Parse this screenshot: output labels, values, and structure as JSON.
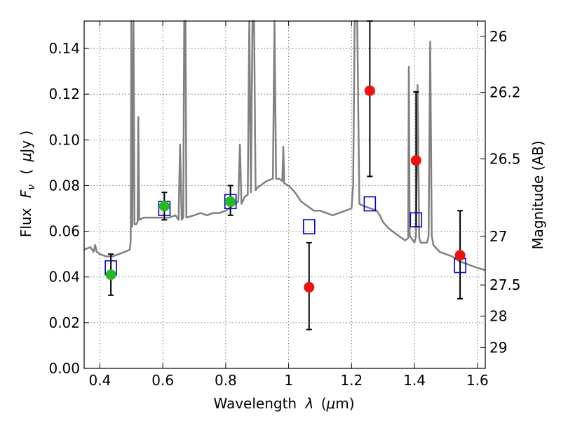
{
  "chart_data": {
    "type": "scatter",
    "xlabel_parts": [
      "Wavelength",
      "λ",
      "(",
      "μ",
      "m)"
    ],
    "ylabel_parts": [
      "Flux",
      "F",
      "ν",
      "(",
      "μ",
      "Jy )"
    ],
    "y2label": "Magnitude (AB)",
    "xlim": [
      0.35,
      1.625
    ],
    "ylim": [
      0.0,
      0.152
    ],
    "grid": true,
    "xticks": [
      {
        "value": 0.4,
        "label": "0.4"
      },
      {
        "value": 0.6,
        "label": "0.6"
      },
      {
        "value": 0.8,
        "label": "0.8"
      },
      {
        "value": 1.0,
        "label": "1"
      },
      {
        "value": 1.2,
        "label": "1.2"
      },
      {
        "value": 1.4,
        "label": "1.4"
      },
      {
        "value": 1.6,
        "label": "1.6"
      }
    ],
    "yticks": [
      {
        "value": 0.0,
        "label": "0.00"
      },
      {
        "value": 0.02,
        "label": "0.02"
      },
      {
        "value": 0.04,
        "label": "0.04"
      },
      {
        "value": 0.06,
        "label": "0.06"
      },
      {
        "value": 0.08,
        "label": "0.08"
      },
      {
        "value": 0.1,
        "label": "0.10"
      },
      {
        "value": 0.12,
        "label": "0.12"
      },
      {
        "value": 0.14,
        "label": "0.14"
      }
    ],
    "y2ticks": [
      {
        "flux": 0.1453,
        "label": "26"
      },
      {
        "flux": 0.1208,
        "label": "26.2"
      },
      {
        "flux": 0.0917,
        "label": "26.5"
      },
      {
        "flux": 0.0578,
        "label": "27"
      },
      {
        "flux": 0.0365,
        "label": "27.5"
      },
      {
        "flux": 0.0229,
        "label": "28"
      },
      {
        "flux": 0.0091,
        "label": "29"
      }
    ],
    "colors": {
      "sed": "#808080",
      "model": "#0000cc",
      "green": "#22bb22",
      "red": "#ee1111",
      "errorbar": "#000000",
      "grid": "#555555"
    },
    "sed_line": [
      [
        0.35,
        0.052
      ],
      [
        0.37,
        0.053
      ],
      [
        0.38,
        0.051
      ],
      [
        0.385,
        0.054
      ],
      [
        0.39,
        0.051
      ],
      [
        0.4,
        0.05
      ],
      [
        0.42,
        0.049
      ],
      [
        0.44,
        0.049
      ],
      [
        0.46,
        0.05
      ],
      [
        0.48,
        0.051
      ],
      [
        0.495,
        0.052
      ],
      [
        0.498,
        0.056
      ],
      [
        0.5,
        0.152
      ],
      [
        0.503,
        0.062
      ],
      [
        0.507,
        0.152
      ],
      [
        0.51,
        0.063
      ],
      [
        0.515,
        0.063
      ],
      [
        0.52,
        0.064
      ],
      [
        0.522,
        0.11
      ],
      [
        0.525,
        0.065
      ],
      [
        0.54,
        0.066
      ],
      [
        0.56,
        0.066
      ],
      [
        0.58,
        0.066
      ],
      [
        0.6,
        0.066
      ],
      [
        0.62,
        0.066
      ],
      [
        0.64,
        0.067
      ],
      [
        0.65,
        0.065
      ],
      [
        0.655,
        0.098
      ],
      [
        0.66,
        0.065
      ],
      [
        0.665,
        0.066
      ],
      [
        0.668,
        0.152
      ],
      [
        0.672,
        0.152
      ],
      [
        0.675,
        0.066
      ],
      [
        0.7,
        0.067
      ],
      [
        0.72,
        0.068
      ],
      [
        0.74,
        0.067
      ],
      [
        0.76,
        0.068
      ],
      [
        0.78,
        0.068
      ],
      [
        0.8,
        0.069
      ],
      [
        0.82,
        0.071
      ],
      [
        0.84,
        0.073
      ],
      [
        0.845,
        0.098
      ],
      [
        0.85,
        0.072
      ],
      [
        0.86,
        0.075
      ],
      [
        0.87,
        0.076
      ],
      [
        0.875,
        0.152
      ],
      [
        0.88,
        0.077
      ],
      [
        0.885,
        0.152
      ],
      [
        0.89,
        0.152
      ],
      [
        0.895,
        0.078
      ],
      [
        0.9,
        0.079
      ],
      [
        0.91,
        0.08
      ],
      [
        0.93,
        0.082
      ],
      [
        0.95,
        0.083
      ],
      [
        0.955,
        0.152
      ],
      [
        0.96,
        0.083
      ],
      [
        0.97,
        0.083
      ],
      [
        0.98,
        0.082
      ],
      [
        0.983,
        0.097
      ],
      [
        0.986,
        0.081
      ],
      [
        1.0,
        0.08
      ],
      [
        1.02,
        0.077
      ],
      [
        1.04,
        0.073
      ],
      [
        1.06,
        0.071
      ],
      [
        1.08,
        0.069
      ],
      [
        1.1,
        0.069
      ],
      [
        1.12,
        0.068
      ],
      [
        1.14,
        0.067
      ],
      [
        1.16,
        0.068
      ],
      [
        1.18,
        0.069
      ],
      [
        1.2,
        0.07
      ],
      [
        1.205,
        0.08
      ],
      [
        1.21,
        0.152
      ],
      [
        1.218,
        0.152
      ],
      [
        1.225,
        0.072
      ],
      [
        1.24,
        0.071
      ],
      [
        1.26,
        0.07
      ],
      [
        1.28,
        0.069
      ],
      [
        1.29,
        0.067
      ],
      [
        1.3,
        0.064
      ],
      [
        1.32,
        0.061
      ],
      [
        1.34,
        0.059
      ],
      [
        1.36,
        0.057
      ],
      [
        1.37,
        0.056
      ],
      [
        1.38,
        0.057
      ],
      [
        1.382,
        0.132
      ],
      [
        1.385,
        0.058
      ],
      [
        1.39,
        0.057
      ],
      [
        1.4,
        0.055
      ],
      [
        1.405,
        0.058
      ],
      [
        1.41,
        0.124
      ],
      [
        1.415,
        0.057
      ],
      [
        1.42,
        0.055
      ],
      [
        1.44,
        0.055
      ],
      [
        1.445,
        0.058
      ],
      [
        1.45,
        0.143
      ],
      [
        1.455,
        0.058
      ],
      [
        1.46,
        0.054
      ],
      [
        1.48,
        0.051
      ],
      [
        1.5,
        0.05
      ],
      [
        1.52,
        0.049
      ],
      [
        1.54,
        0.047
      ],
      [
        1.56,
        0.046
      ],
      [
        1.58,
        0.045
      ],
      [
        1.6,
        0.044
      ],
      [
        1.625,
        0.043
      ]
    ],
    "series": [
      {
        "marker": "open-square",
        "color": "#0000cc",
        "points": [
          {
            "x": 0.435,
            "y": 0.044
          },
          {
            "x": 0.605,
            "y": 0.07
          },
          {
            "x": 0.815,
            "y": 0.073
          },
          {
            "x": 1.065,
            "y": 0.062
          },
          {
            "x": 1.258,
            "y": 0.072
          },
          {
            "x": 1.405,
            "y": 0.065
          },
          {
            "x": 1.545,
            "y": 0.045
          }
        ]
      },
      {
        "marker": "circle",
        "color": "#22bb22",
        "points": [
          {
            "x": 0.435,
            "y": 0.041,
            "err_lo": 0.032,
            "err_hi": 0.05
          },
          {
            "x": 0.605,
            "y": 0.071,
            "err_lo": 0.065,
            "err_hi": 0.077
          },
          {
            "x": 0.815,
            "y": 0.073,
            "err_lo": 0.067,
            "err_hi": 0.08
          }
        ]
      },
      {
        "marker": "circle",
        "color": "#ee1111",
        "points": [
          {
            "x": 1.065,
            "y": 0.0355,
            "err_lo": 0.017,
            "err_hi": 0.055
          },
          {
            "x": 1.258,
            "y": 0.1215,
            "err_lo": 0.084,
            "err_hi": 0.152
          },
          {
            "x": 1.405,
            "y": 0.091,
            "err_lo": 0.062,
            "err_hi": 0.121
          },
          {
            "x": 1.545,
            "y": 0.0495,
            "err_lo": 0.0305,
            "err_hi": 0.069
          }
        ]
      }
    ]
  }
}
